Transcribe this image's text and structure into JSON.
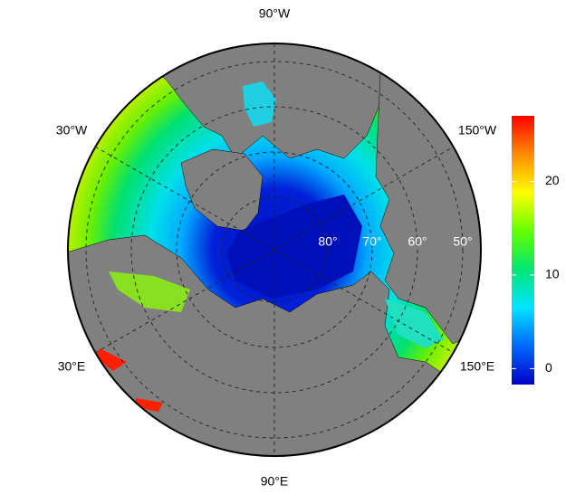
{
  "map": {
    "lon_labels": [
      "90°W",
      "30°W",
      "150°W",
      "30°E",
      "150°E",
      "90°E"
    ],
    "lat_labels": [
      "80°",
      "70°",
      "60°",
      "50°"
    ],
    "colorbar": {
      "lim": [
        -1.7,
        27
      ],
      "ticks": [
        0,
        10,
        20
      ],
      "colors": [
        "#0000c8",
        "#0066ff",
        "#00e5ff",
        "#00e676",
        "#66ff00",
        "#ffff00",
        "#ff8c00",
        "#ff0000"
      ]
    }
  }
}
